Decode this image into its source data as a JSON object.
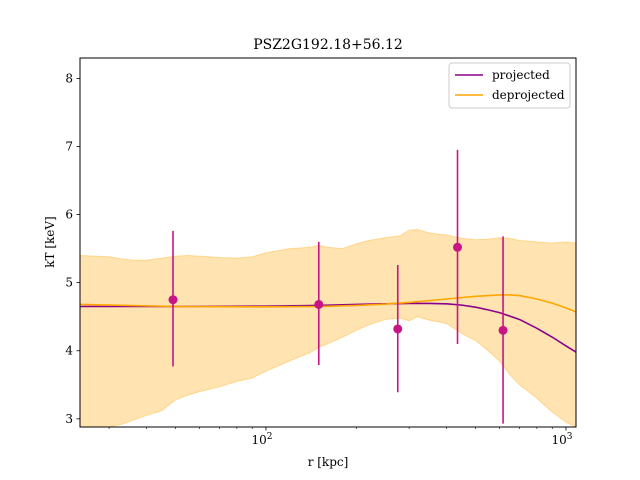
{
  "chart_data": {
    "type": "line",
    "title": "PSZ2G192.18+56.12",
    "xlabel": "r [kpc]",
    "ylabel": "kT [keV]",
    "xscale": "log",
    "xlim": [
      24,
      1080
    ],
    "ylim": [
      2.88,
      8.3
    ],
    "grid": false,
    "legend_position": "top-right",
    "xticks": [
      {
        "value": 100,
        "label": "10^2"
      },
      {
        "value": 1000,
        "label": "10^3"
      }
    ],
    "yticks": [
      3,
      4,
      5,
      6,
      7,
      8
    ],
    "series": [
      {
        "name": "projected",
        "color": "#8b008b",
        "x": [
          24,
          50,
          100,
          150,
          200,
          250,
          300,
          350,
          400,
          450,
          500,
          550,
          600,
          700,
          800,
          900,
          1000,
          1080
        ],
        "y": [
          4.65,
          4.65,
          4.655,
          4.665,
          4.68,
          4.69,
          4.695,
          4.695,
          4.69,
          4.67,
          4.64,
          4.6,
          4.56,
          4.46,
          4.33,
          4.2,
          4.07,
          3.98
        ]
      },
      {
        "name": "deprojected",
        "color": "#ffa500",
        "x": [
          24,
          50,
          100,
          150,
          200,
          250,
          300,
          400,
          500,
          600,
          650,
          700,
          800,
          900,
          1000,
          1080
        ],
        "y": [
          4.68,
          4.65,
          4.645,
          4.65,
          4.665,
          4.685,
          4.71,
          4.76,
          4.8,
          4.82,
          4.82,
          4.81,
          4.76,
          4.7,
          4.63,
          4.57
        ]
      }
    ],
    "band": {
      "color": "#ffa500",
      "opacity": 0.3,
      "x": [
        24,
        30,
        33,
        36,
        40,
        45,
        50,
        55,
        60,
        70,
        80,
        90,
        100,
        120,
        140,
        150,
        160,
        180,
        200,
        220,
        250,
        280,
        300,
        320,
        350,
        400,
        450,
        500,
        550,
        600,
        650,
        700,
        800,
        900,
        1000,
        1080
      ],
      "upper": [
        5.4,
        5.38,
        5.35,
        5.33,
        5.33,
        5.36,
        5.39,
        5.4,
        5.39,
        5.37,
        5.36,
        5.38,
        5.44,
        5.5,
        5.52,
        5.55,
        5.52,
        5.5,
        5.57,
        5.62,
        5.66,
        5.69,
        5.77,
        5.78,
        5.73,
        5.7,
        5.65,
        5.63,
        5.64,
        5.66,
        5.65,
        5.62,
        5.6,
        5.58,
        5.6,
        5.58
      ],
      "lower": [
        2.88,
        2.88,
        2.92,
        2.98,
        3.05,
        3.12,
        3.28,
        3.35,
        3.4,
        3.47,
        3.55,
        3.6,
        3.7,
        3.85,
        3.97,
        4.05,
        4.1,
        4.2,
        4.3,
        4.38,
        4.46,
        4.48,
        4.44,
        4.5,
        4.45,
        4.4,
        4.25,
        4.15,
        4.0,
        3.85,
        3.65,
        3.5,
        3.3,
        3.1,
        2.95,
        2.88
      ]
    },
    "points": {
      "color": "#c71585",
      "data": [
        {
          "x": 49,
          "y": 4.75,
          "ylo": 3.77,
          "yhi": 5.76
        },
        {
          "x": 150,
          "y": 4.68,
          "ylo": 3.79,
          "yhi": 5.6
        },
        {
          "x": 275,
          "y": 4.32,
          "ylo": 3.39,
          "yhi": 5.26
        },
        {
          "x": 435,
          "y": 5.52,
          "ylo": 4.1,
          "yhi": 6.95
        },
        {
          "x": 617,
          "y": 4.3,
          "ylo": 2.93,
          "yhi": 5.68
        }
      ]
    }
  }
}
